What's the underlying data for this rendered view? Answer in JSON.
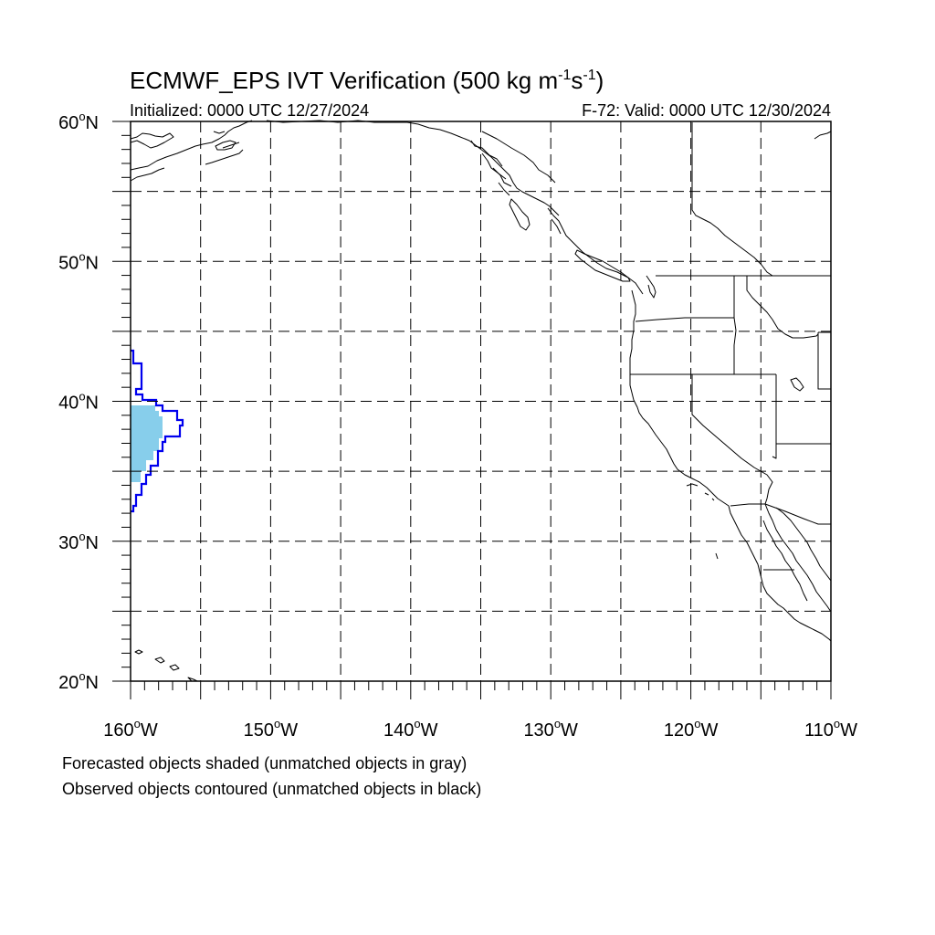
{
  "title": "ECMWF_EPS IVT Verification (500 kg m",
  "title_sup1": "-1",
  "title_mid": "s",
  "title_sup2": "-1",
  "title_end": ")",
  "initialized": "Initialized: 0000 UTC 12/27/2024",
  "valid": "F-72: Valid: 0000 UTC 12/30/2024",
  "lat_labels": [
    "60",
    "50",
    "40",
    "30",
    "20"
  ],
  "lat_hemi": "N",
  "lon_labels": [
    "160",
    "150",
    "140",
    "130",
    "120",
    "110"
  ],
  "lon_hemi": "W",
  "degree_symbol": "o",
  "notes": {
    "line1": "Forecasted objects shaded (unmatched objects in gray)",
    "line2": "Observed objects contoured (unmatched objects in black)"
  },
  "map": {
    "lon_range": [
      -160,
      -110
    ],
    "lat_range": [
      20,
      60
    ],
    "grid_step_deg": 5,
    "grid_style": "dashed"
  },
  "colors": {
    "forecast_fill": "#87ceeb",
    "observed_contour": "#0000ee",
    "coast": "#000000",
    "grid": "#000000"
  }
}
